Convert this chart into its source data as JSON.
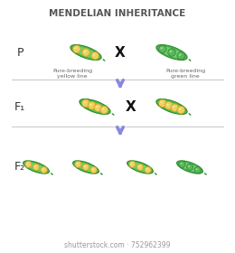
{
  "title": "MENDELIAN INHERITANCE",
  "title_fontsize": 7.5,
  "title_fontweight": "bold",
  "bg_color": "#ffffff",
  "pod_outer_color": "#4cb84c",
  "pod_inner_color": "#6dd46d",
  "pod_dark_color": "#2e8b2e",
  "pea_yellow_color": "#f0d060",
  "pea_green_color": "#5ab85a",
  "pea_yellow_outline": "#c8a820",
  "pea_green_outline": "#3a8a3a",
  "arrow_color": "#8888dd",
  "cross_color": "#111111",
  "label_P": "P",
  "label_F1": "F₁",
  "label_F2": "F₂",
  "label_yellow": "Pure-breeding\nyellow line",
  "label_green": "Pure-breeding\ngreen line",
  "watermark": "shutterstock.com · 752962399",
  "watermark_fontsize": 5.5,
  "gen_label_fontsize": 9,
  "sublabel_fontsize": 4.5,
  "line_color": "#cccccc"
}
